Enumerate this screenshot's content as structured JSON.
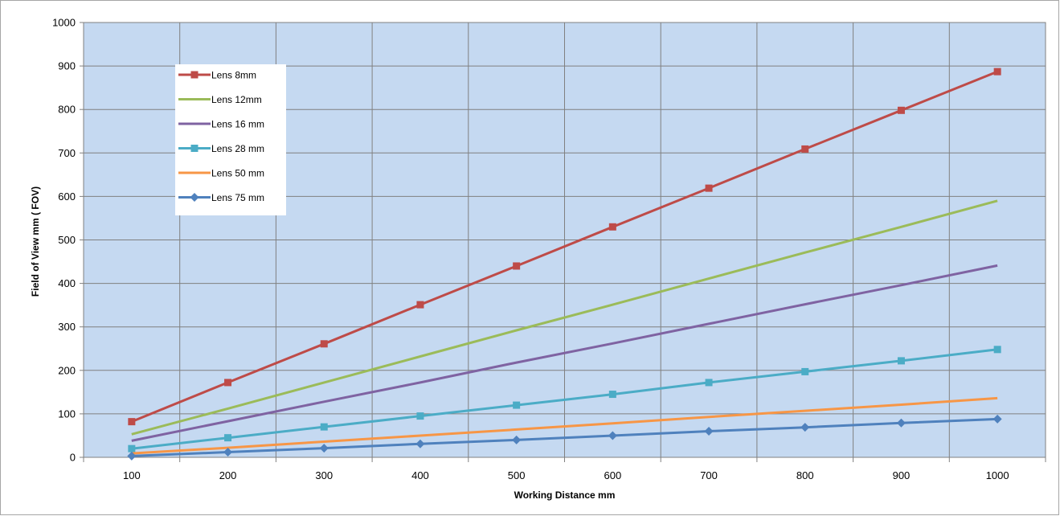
{
  "chart_data": {
    "type": "line",
    "title": "",
    "xlabel": "Working Distance  mm",
    "ylabel": "Field of View mm ( FOV)",
    "x": [
      100,
      200,
      300,
      400,
      500,
      600,
      700,
      800,
      900,
      1000
    ],
    "xlim": [
      50,
      1050
    ],
    "ylim": [
      0,
      1000
    ],
    "yticks": [
      0,
      100,
      200,
      300,
      400,
      500,
      600,
      700,
      800,
      900,
      1000
    ],
    "grid": true,
    "legend_position": "top-left",
    "plot_background": "#c5d9f1",
    "series": [
      {
        "name": "Lens 8mm",
        "color": "#be4b48",
        "marker": "square",
        "values": [
          82,
          172,
          261,
          351,
          440,
          530,
          619,
          709,
          798,
          887
        ]
      },
      {
        "name": "Lens 12mm",
        "color": "#9bbb59",
        "marker": "none",
        "values": [
          53,
          112,
          172,
          232,
          292,
          351,
          411,
          471,
          530,
          590
        ]
      },
      {
        "name": "Lens 16 mm",
        "color": "#7f63a2",
        "marker": "none",
        "values": [
          38,
          83,
          128,
          172,
          218,
          262,
          307,
          352,
          396,
          441
        ]
      },
      {
        "name": "Lens 28 mm",
        "color": "#4bacc6",
        "marker": "square",
        "values": [
          20,
          45,
          70,
          95,
          120,
          145,
          172,
          197,
          222,
          248
        ]
      },
      {
        "name": "Lens 50 mm",
        "color": "#f79646",
        "marker": "none",
        "values": [
          9,
          22,
          36,
          50,
          64,
          78,
          93,
          107,
          121,
          136
        ]
      },
      {
        "name": "Lens 75 mm",
        "color": "#4f81bd",
        "marker": "diamond",
        "values": [
          3,
          12,
          21,
          31,
          40,
          50,
          60,
          69,
          79,
          88
        ]
      }
    ]
  }
}
